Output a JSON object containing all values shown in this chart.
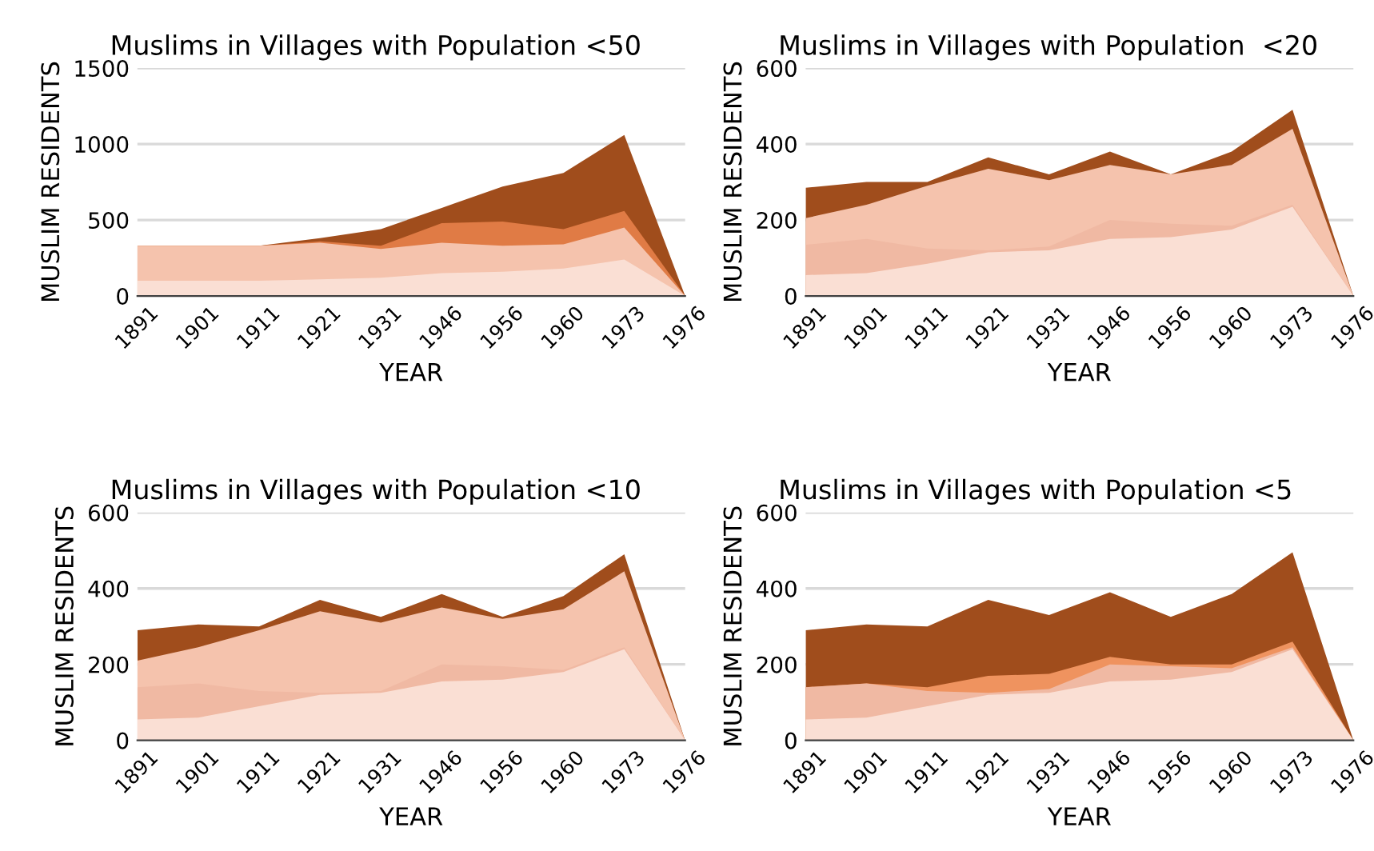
{
  "chart_data": [
    {
      "type": "area",
      "title": "Muslims in Villages with Population <50",
      "xlabel": "YEAR",
      "ylabel": "MUSLIM RESIDENTS",
      "categories": [
        "1891",
        "1901",
        "1911",
        "1921",
        "1931",
        "1946",
        "1956",
        "1960",
        "1973",
        "1976"
      ],
      "ylim": [
        0,
        1500
      ],
      "yticks": [
        0,
        500,
        1000,
        1500
      ],
      "grid": "y",
      "legend": false,
      "series": [
        {
          "color": "#a04d1c",
          "values": [
            330,
            330,
            330,
            380,
            440,
            580,
            720,
            810,
            1060,
            0
          ]
        },
        {
          "color": "#e07b45",
          "values": [
            330,
            330,
            330,
            360,
            330,
            480,
            490,
            440,
            560,
            0
          ]
        },
        {
          "color": "#f5c3ad",
          "values": [
            330,
            330,
            330,
            350,
            310,
            350,
            330,
            340,
            450,
            0
          ]
        },
        {
          "color": "#fadfd4",
          "values": [
            100,
            100,
            100,
            110,
            120,
            150,
            160,
            180,
            240,
            0
          ]
        }
      ]
    },
    {
      "type": "area",
      "title": "Muslims in Villages with Population  <20",
      "xlabel": "YEAR",
      "ylabel": "MUSLIM RESIDENTS",
      "categories": [
        "1891",
        "1901",
        "1911",
        "1921",
        "1931",
        "1946",
        "1956",
        "1960",
        "1973",
        "1976"
      ],
      "ylim": [
        0,
        600
      ],
      "yticks": [
        0,
        200,
        400,
        600
      ],
      "grid": "y",
      "legend": false,
      "series": [
        {
          "color": "#a04d1c",
          "values": [
            285,
            300,
            300,
            365,
            320,
            380,
            320,
            380,
            490,
            0
          ]
        },
        {
          "color": "#f5c3ad",
          "values": [
            205,
            240,
            290,
            335,
            305,
            345,
            320,
            345,
            440,
            0
          ]
        },
        {
          "color": "#f0b9a3",
          "values": [
            135,
            150,
            125,
            120,
            130,
            200,
            190,
            185,
            240,
            0
          ]
        },
        {
          "color": "#fadfd4",
          "values": [
            55,
            60,
            85,
            115,
            120,
            150,
            155,
            175,
            235,
            0
          ]
        }
      ]
    },
    {
      "type": "area",
      "title": "Muslims in Villages with Population <10",
      "xlabel": "YEAR",
      "ylabel": "MUSLIM RESIDENTS",
      "categories": [
        "1891",
        "1901",
        "1911",
        "1921",
        "1931",
        "1946",
        "1956",
        "1960",
        "1973",
        "1976"
      ],
      "ylim": [
        0,
        600
      ],
      "yticks": [
        0,
        200,
        400,
        600
      ],
      "grid": "y",
      "legend": false,
      "series": [
        {
          "color": "#a04d1c",
          "values": [
            290,
            305,
            300,
            370,
            325,
            385,
            325,
            380,
            490,
            0
          ]
        },
        {
          "color": "#f5c3ad",
          "values": [
            210,
            245,
            290,
            340,
            310,
            350,
            320,
            345,
            445,
            0
          ]
        },
        {
          "color": "#f0b9a3",
          "values": [
            140,
            150,
            130,
            125,
            130,
            200,
            195,
            185,
            245,
            0
          ]
        },
        {
          "color": "#fadfd4",
          "values": [
            55,
            60,
            90,
            120,
            125,
            155,
            160,
            180,
            240,
            0
          ]
        }
      ]
    },
    {
      "type": "area",
      "title": "Muslims in Villages with Population <5",
      "xlabel": "YEAR",
      "ylabel": "MUSLIM RESIDENTS",
      "categories": [
        "1891",
        "1901",
        "1911",
        "1921",
        "1931",
        "1946",
        "1956",
        "1960",
        "1973",
        "1976"
      ],
      "ylim": [
        0,
        600
      ],
      "yticks": [
        0,
        200,
        400,
        600
      ],
      "grid": "y",
      "legend": false,
      "series": [
        {
          "color": "#a04d1c",
          "values": [
            290,
            305,
            300,
            370,
            330,
            390,
            325,
            385,
            495,
            0
          ]
        },
        {
          "color": "#ef935f",
          "values": [
            140,
            150,
            140,
            170,
            175,
            220,
            200,
            200,
            260,
            0
          ]
        },
        {
          "color": "#f0b9a3",
          "values": [
            140,
            150,
            130,
            125,
            135,
            200,
            195,
            190,
            245,
            0
          ]
        },
        {
          "color": "#fadfd4",
          "values": [
            55,
            60,
            90,
            120,
            125,
            155,
            160,
            180,
            240,
            0
          ]
        }
      ]
    }
  ]
}
